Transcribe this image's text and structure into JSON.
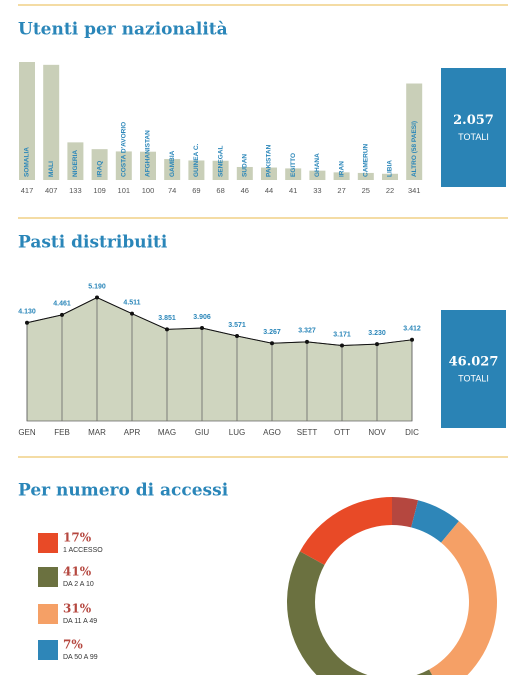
{
  "chart_data": [
    {
      "type": "bar",
      "title": "Utenti per nazionalità",
      "categories": [
        "SOMALIA",
        "MALI",
        "NIGERIA",
        "IRAQ",
        "COSTA D'AVORIO",
        "AFGHANISTAN",
        "GAMBIA",
        "GUINEA C.",
        "SENEGAL",
        "SUDAN",
        "PAKISTAN",
        "EGITTO",
        "GHANA",
        "IRAN",
        "CAMERUN",
        "LIBIA",
        "ALTRO (58 PAESI)"
      ],
      "values": [
        417,
        407,
        133,
        109,
        101,
        100,
        74,
        69,
        68,
        46,
        44,
        41,
        33,
        27,
        25,
        22,
        341
      ],
      "color": "#c9cfb8",
      "label_color": "#2a86b9",
      "total": "2.057",
      "total_caption": "TOTALI",
      "total_color": "#2a83b5"
    },
    {
      "type": "area",
      "title": "Pasti distribuiti",
      "categories": [
        "GEN",
        "FEB",
        "MAR",
        "APR",
        "MAG",
        "GIU",
        "LUG",
        "AGO",
        "SETT",
        "OTT",
        "NOV",
        "DIC"
      ],
      "values": [
        4130,
        4461,
        5190,
        4511,
        3851,
        3906,
        3571,
        3267,
        3327,
        3171,
        3230,
        3412
      ],
      "value_labels": [
        "4.130",
        "4.461",
        "5.190",
        "4.511",
        "3.851",
        "3.906",
        "3.571",
        "3.267",
        "3.327",
        "3.171",
        "3.230",
        "3.412"
      ],
      "color": "#cfd5bf",
      "line_color": "#111111",
      "label_color": "#2a86b9",
      "total": "46.027",
      "total_caption": "TOTALI",
      "total_color": "#2a83b5"
    },
    {
      "type": "donut",
      "title": "Per numero di accessi",
      "categories": [
        "1 ACCESSO",
        "DA 2 A 10",
        "DA 11 A 49",
        "DA 50 A 99",
        null
      ],
      "values": [
        17,
        41,
        31,
        7,
        4
      ],
      "value_labels": [
        "17%",
        "41%",
        "31%",
        "7%",
        null
      ],
      "colors": [
        "#e84a27",
        "#6b7140",
        "#f5a066",
        "#2e86b8",
        "#b5473f"
      ]
    }
  ]
}
